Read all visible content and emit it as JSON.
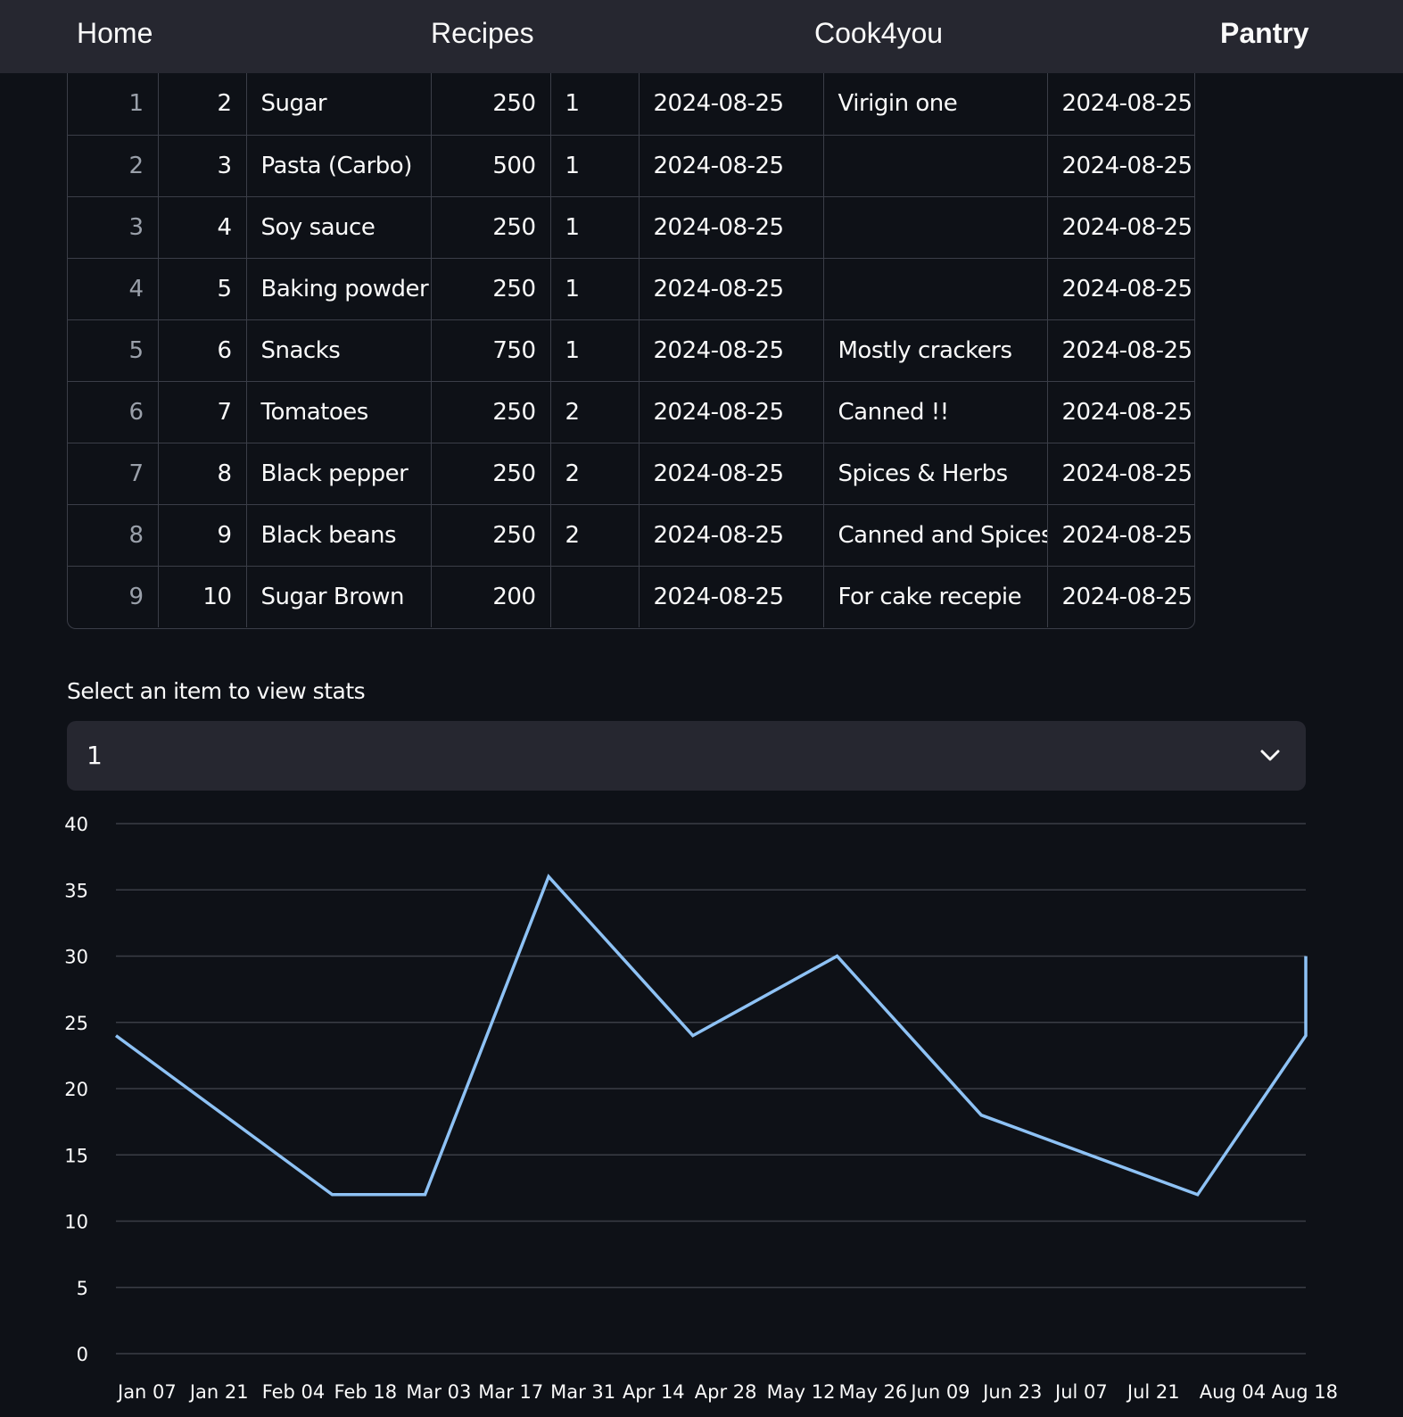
{
  "nav": {
    "home": "Home",
    "recipes": "Recipes",
    "cook4you": "Cook4you",
    "pantry": "Pantry"
  },
  "table": {
    "rows": [
      [
        "1",
        "2",
        "Sugar",
        "250",
        "1",
        "2024-08-25",
        "Virigin one",
        "2024-08-25"
      ],
      [
        "2",
        "3",
        "Pasta (Carbo)",
        "500",
        "1",
        "2024-08-25",
        "",
        "2024-08-25"
      ],
      [
        "3",
        "4",
        "Soy sauce",
        "250",
        "1",
        "2024-08-25",
        "",
        "2024-08-25"
      ],
      [
        "4",
        "5",
        "Baking powder",
        "250",
        "1",
        "2024-08-25",
        "",
        "2024-08-25"
      ],
      [
        "5",
        "6",
        "Snacks",
        "750",
        "1",
        "2024-08-25",
        "Mostly crackers",
        "2024-08-25"
      ],
      [
        "6",
        "7",
        "Tomatoes",
        "250",
        "2",
        "2024-08-25",
        "Canned !!",
        "2024-08-25"
      ],
      [
        "7",
        "8",
        "Black pepper",
        "250",
        "2",
        "2024-08-25",
        "Spices & Herbs",
        "2024-08-25"
      ],
      [
        "8",
        "9",
        "Black beans",
        "250",
        "2",
        "2024-08-25",
        "Canned and Spices",
        "2024-08-25"
      ],
      [
        "9",
        "10",
        "Sugar Brown",
        "200",
        "",
        "2024-08-25",
        "For cake recepie",
        "2024-08-25"
      ]
    ]
  },
  "select": {
    "label": "Select an item to view stats",
    "value": "1"
  },
  "colors": {
    "background": "#0e1117",
    "panel": "#262730",
    "line": "#8ec2f5",
    "grid": "#3a3d46"
  },
  "chart_data": {
    "type": "line",
    "ylim": [
      0,
      40
    ],
    "yticks": [
      0,
      5,
      10,
      15,
      20,
      25,
      30,
      35,
      40
    ],
    "xlim": [
      "2024-01-07",
      "2024-08-25"
    ],
    "xtick_labels": [
      "Jan 07",
      "Jan 21",
      "Feb 04",
      "Feb 18",
      "Mar 03",
      "Mar 17",
      "Mar 31",
      "Apr 14",
      "Apr 28",
      "May 12",
      "May 26",
      "Jun 09",
      "Jun 23",
      "Jul 07",
      "Jul 21",
      "Aug 04",
      "Aug 18"
    ],
    "grid": true,
    "series": [
      {
        "x": [
          "2024-01-07",
          "2024-01-21",
          "2024-02-04",
          "2024-02-18",
          "2024-03-07",
          "2024-03-31",
          "2024-04-28",
          "2024-05-26",
          "2024-06-23",
          "2024-08-04",
          "2024-08-25",
          "2024-08-25"
        ],
        "y": [
          24,
          20,
          16,
          12,
          12,
          36,
          24,
          30,
          18,
          12,
          24,
          30
        ]
      }
    ]
  }
}
